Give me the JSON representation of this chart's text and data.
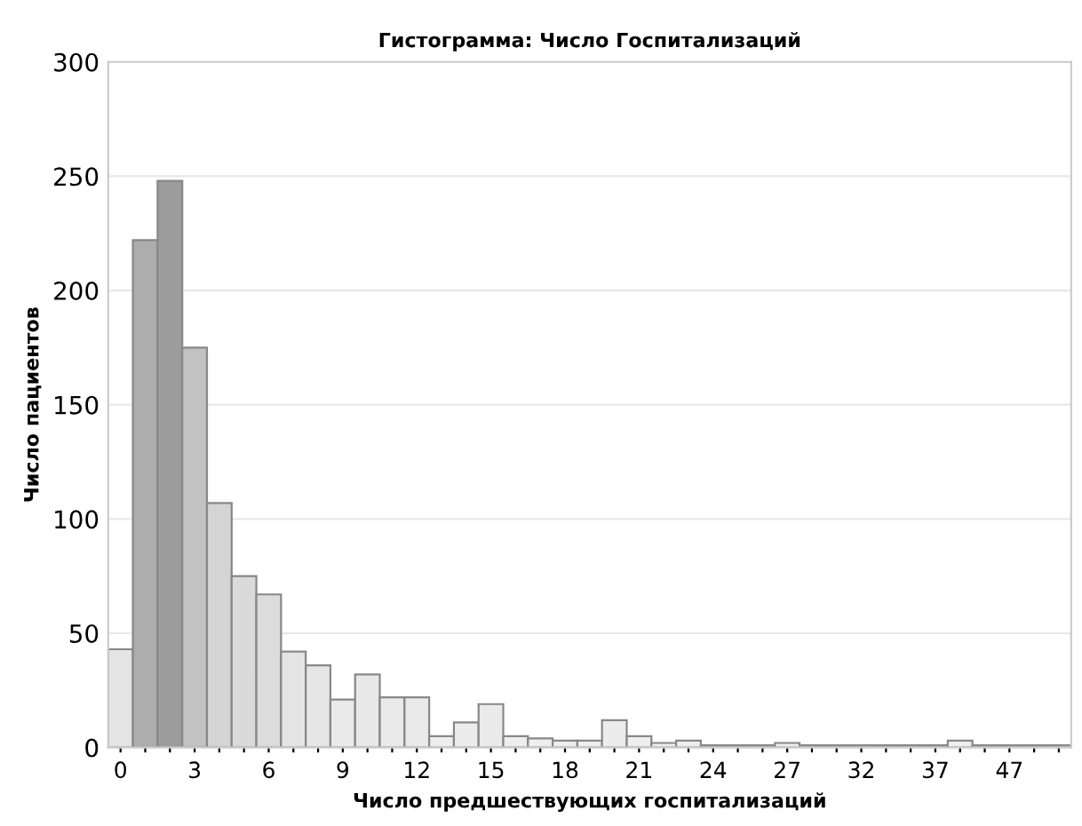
{
  "chart_data": {
    "type": "bar",
    "title": "Гистограмма: Число Госпитализаций",
    "xlabel": "Число предшествующих госпитализаций",
    "ylabel": "Число пациентов",
    "categories": [
      "0",
      null,
      null,
      "3",
      null,
      null,
      "6",
      null,
      null,
      "9",
      null,
      null,
      "12",
      null,
      null,
      "15",
      null,
      null,
      "18",
      null,
      null,
      "21",
      null,
      null,
      "24",
      null,
      null,
      "27",
      null,
      null,
      "32",
      null,
      null,
      "37",
      null,
      null,
      "47",
      null,
      null
    ],
    "values": [
      43,
      222,
      248,
      175,
      107,
      75,
      67,
      42,
      36,
      21,
      32,
      22,
      22,
      5,
      11,
      19,
      5,
      4,
      3,
      3,
      12,
      5,
      2,
      3,
      1,
      1,
      1,
      2,
      1,
      1,
      1,
      1,
      1,
      1,
      3,
      1,
      1,
      1,
      1
    ],
    "colors": [
      "#e4e4e4",
      "#adadad",
      "#9c9c9c",
      "#c2c2c2",
      "#d4d4d4",
      "#dadada",
      "#dcdcdc",
      "#e4e4e4",
      "#e6e6e6",
      "#eaeaea",
      "#e8e8e8",
      "#eaeaea",
      "#eaeaea",
      "#eeeeee",
      "#ececec",
      "#eaeaea",
      "#eeeeee",
      "#eeeeee",
      "#eeeeee",
      "#eeeeee",
      "#ececec",
      "#eeeeee",
      "#eeeeee",
      "#eeeeee",
      "#eeeeee",
      "#eeeeee",
      "#eeeeee",
      "#eeeeee",
      "#eeeeee",
      "#eeeeee",
      "#eeeeee",
      "#eeeeee",
      "#eeeeee",
      "#eeeeee",
      "#eeeeee",
      "#eeeeee",
      "#eeeeee",
      "#eeeeee",
      "#eeeeee"
    ],
    "ylim": [
      0,
      300
    ],
    "yticks": [
      0,
      50,
      100,
      150,
      200,
      250,
      300
    ],
    "grid": "y"
  }
}
